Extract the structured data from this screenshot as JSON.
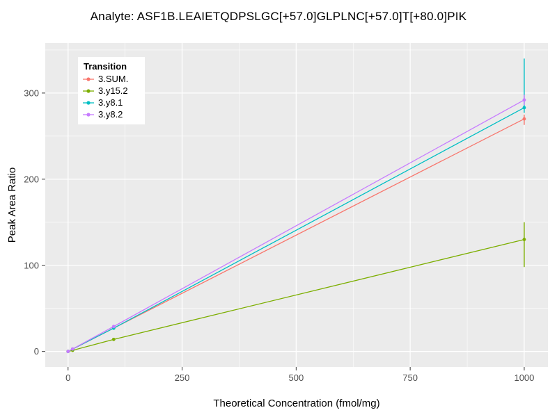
{
  "style": {
    "panel_bg": "#EBEBEB",
    "grid_color": "#FFFFFF",
    "tick_label_color": "#4D4D4D",
    "tick_mark_color": "#333333",
    "axis_title_color": "#000000",
    "legend_bg": "#FFFFFF",
    "figure_bg": "#FFFFFF"
  },
  "chart_data": {
    "type": "line",
    "title": "Analyte: ASF1B.LEAIETQDPSLGC[+57.0]GLPLNC[+57.0]T[+80.0]PIK",
    "xlabel": "Theoretical Concentration (fmol/mg)",
    "ylabel": "Peak Area Ratio",
    "xlim": [
      -50,
      1052
    ],
    "ylim": [
      -18,
      358
    ],
    "x_ticks": [
      0,
      250,
      500,
      750,
      1000
    ],
    "x_minor_ticks": [
      125,
      375,
      625,
      875
    ],
    "y_ticks": [
      0,
      100,
      200,
      300
    ],
    "y_minor_ticks": [
      50,
      150,
      250,
      350
    ],
    "grid": true,
    "legend_title": "Transition",
    "legend_position": "top-left-inside",
    "series": [
      {
        "name": "3.SUM.",
        "color": "#F8766D",
        "points": [
          {
            "x": 0,
            "y": 0
          },
          {
            "x": 10,
            "y": 2.7
          },
          {
            "x": 100,
            "y": 27
          },
          {
            "x": 1000,
            "y": 270
          }
        ],
        "errors": [
          {
            "x": 1000,
            "lo": 263,
            "hi": 275
          }
        ]
      },
      {
        "name": "3.y15.2",
        "color": "#7CAE00",
        "points": [
          {
            "x": 0,
            "y": 0
          },
          {
            "x": 10,
            "y": 1.3
          },
          {
            "x": 100,
            "y": 14
          },
          {
            "x": 1000,
            "y": 130
          }
        ],
        "errors": [
          {
            "x": 1000,
            "lo": 98,
            "hi": 150
          }
        ]
      },
      {
        "name": "3.y8.1",
        "color": "#00BFC4",
        "points": [
          {
            "x": 0,
            "y": 0
          },
          {
            "x": 10,
            "y": 2.8
          },
          {
            "x": 100,
            "y": 27
          },
          {
            "x": 1000,
            "y": 283
          }
        ],
        "errors": [
          {
            "x": 1000,
            "lo": 277,
            "hi": 340
          }
        ]
      },
      {
        "name": "3.y8.2",
        "color": "#C77CFF",
        "points": [
          {
            "x": 0,
            "y": 0
          },
          {
            "x": 10,
            "y": 2.9
          },
          {
            "x": 100,
            "y": 29
          },
          {
            "x": 1000,
            "y": 292
          }
        ],
        "errors": [
          {
            "x": 1000,
            "lo": 286,
            "hi": 298
          }
        ]
      }
    ]
  }
}
